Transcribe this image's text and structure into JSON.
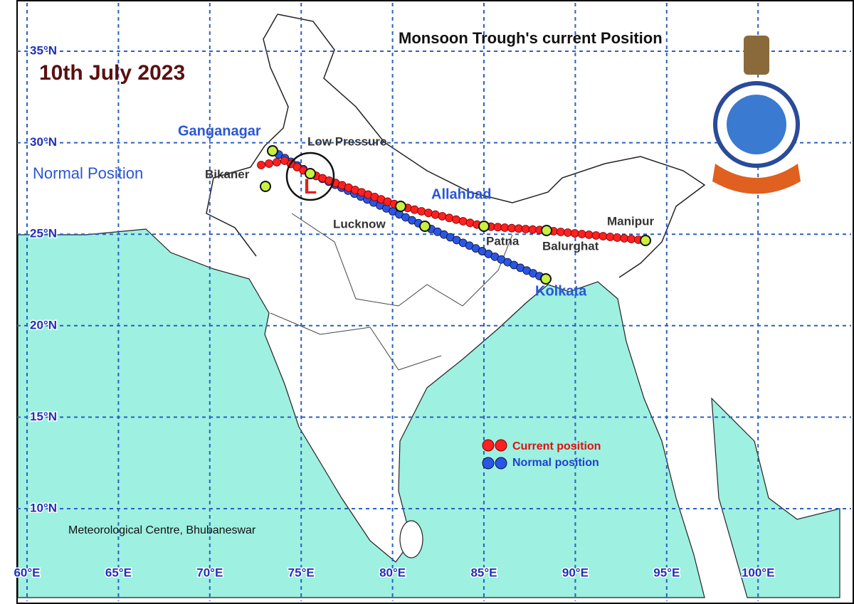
{
  "header": {
    "title": "Monsoon Trough's current  Position",
    "date": "10th July 2023",
    "normal_note": "Normal Position"
  },
  "latitude_labels": [
    "35°N",
    "30°N",
    "25°N",
    "20°N",
    "15°N",
    "10°N"
  ],
  "longitude_labels": [
    "60°E",
    "65°E",
    "70°E",
    "75°E",
    "80°E",
    "85°E",
    "90°E",
    "95°E",
    "100°E"
  ],
  "places": {
    "ganganagar": "Ganganagar",
    "bikaner": "Bikaner",
    "low_pressure": "Low Pressure",
    "low": "L",
    "allahbad": "Allahbad",
    "lucknow": "Lucknow",
    "patna": "Patna",
    "balurghat": "Balurghat",
    "manipur": "Manipur",
    "kolkata": "Kolkata"
  },
  "legend": {
    "current": "Current position",
    "normal": "Normal position"
  },
  "footer": "Meteorological Centre, Bhubaneswar"
}
